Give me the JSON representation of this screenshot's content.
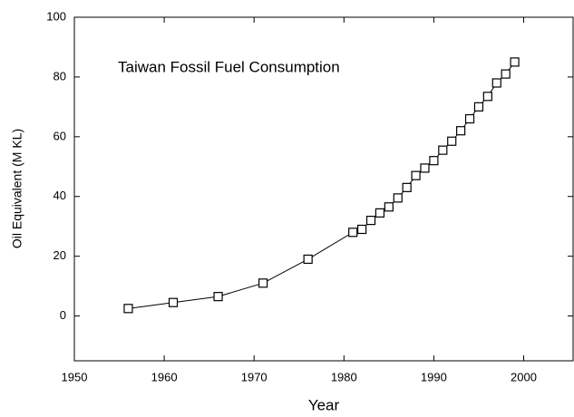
{
  "chart_data": {
    "type": "line",
    "title": "Taiwan Fossil Fuel Consumption",
    "x_label": "Year",
    "y_label": "Oil Equivalent (M KL)",
    "x": [
      1956,
      1961,
      1966,
      1971,
      1976,
      1981,
      1982,
      1983,
      1984,
      1985,
      1986,
      1987,
      1988,
      1989,
      1990,
      1991,
      1992,
      1993,
      1994,
      1995,
      1996,
      1997,
      1998,
      1999
    ],
    "series": [
      {
        "name": "Taiwan",
        "color": "#000000",
        "values": [
          2.5,
          4.5,
          6.5,
          11,
          19,
          28,
          29,
          32,
          34.5,
          36.5,
          39.5,
          43,
          47,
          49.5,
          52,
          55.5,
          58.5,
          62,
          66,
          70,
          73.5,
          78,
          81,
          85
        ]
      }
    ],
    "xlim": [
      1950,
      2005.5
    ],
    "xticks": [
      1950,
      1960,
      1970,
      1980,
      1990,
      2000
    ],
    "ylim": [
      -15,
      100
    ],
    "yticks": [
      0,
      20,
      40,
      60,
      80,
      100
    ],
    "grid": false
  }
}
